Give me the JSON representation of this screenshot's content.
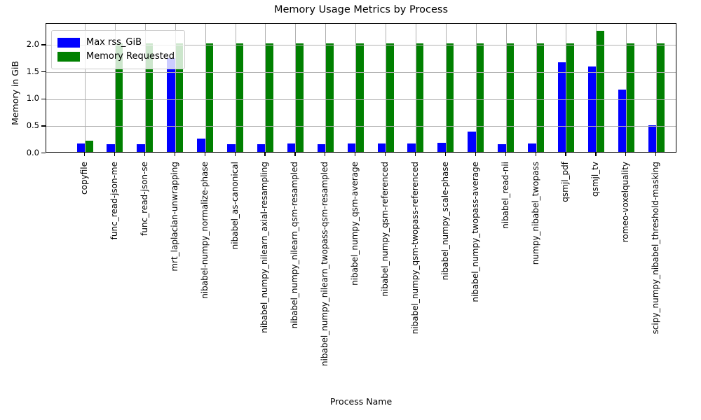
{
  "figure": {
    "background": "#ffffff"
  },
  "chart_data": {
    "type": "bar",
    "title": "Memory Usage Metrics by Process",
    "xlabel": "Process Name",
    "ylabel": "Memory in GiB",
    "ylim": [
      0,
      2.39
    ],
    "ytick_labels": [
      "0.0",
      "0.5",
      "1.0",
      "1.5",
      "2.0"
    ],
    "grid": true,
    "grid_color": "#b0b0b0",
    "legend_position": "upper left",
    "categories": [
      "copyfile",
      "func_read-json-me",
      "func_read-json-se",
      "mrt_laplacian-unwrapping",
      "nibabel-numpy_normalize-phase",
      "nibabel_as-canonical",
      "nibabel_numpy_nilearn_axial-resampling",
      "nibabel_numpy_nilearn_qsm-resampled",
      "nibabel_numpy_nilearn_twopass-qsm-resampled",
      "nibabel_numpy_qsm-average",
      "nibabel_numpy_qsm-referenced",
      "nibabel_numpy_qsm-twopass-referenced",
      "nibabel_numpy_scale-phase",
      "nibabel_numpy_twopass-average",
      "nibabel_read-nii",
      "numpy_nibabel_twopass",
      "qsmjl_pdf",
      "qsmjl_tv",
      "romeo-voxelquality",
      "scipy_numpy_nibabel_threshold-masking"
    ],
    "series": [
      {
        "name": "Max rss_GiB",
        "color": "#0000ff",
        "values": [
          0.15,
          0.14,
          0.14,
          1.73,
          0.25,
          0.14,
          0.14,
          0.15,
          0.14,
          0.15,
          0.15,
          0.15,
          0.17,
          0.37,
          0.14,
          0.16,
          1.65,
          1.58,
          1.15,
          0.49
        ]
      },
      {
        "name": "Memory Requested",
        "color": "#008000",
        "values": [
          0.21,
          2.0,
          2.0,
          2.0,
          2.0,
          2.0,
          2.0,
          2.0,
          2.0,
          2.0,
          2.0,
          2.0,
          2.0,
          2.0,
          2.0,
          2.0,
          2.0,
          2.24,
          2.0,
          2.0
        ]
      }
    ]
  }
}
